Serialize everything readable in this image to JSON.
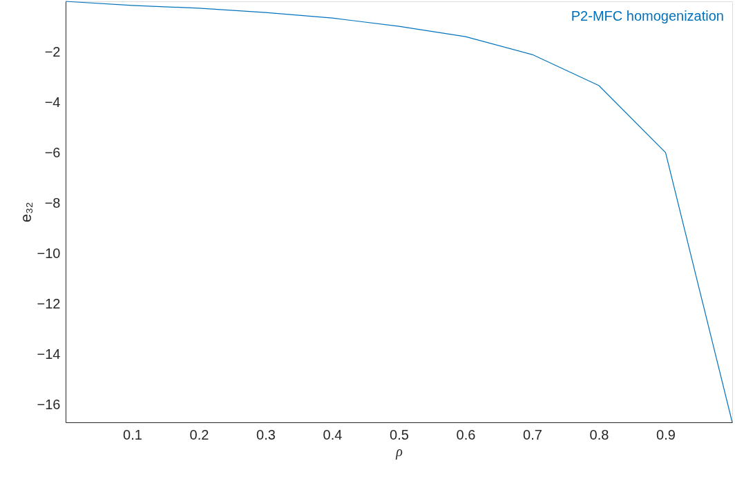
{
  "chart_data": {
    "type": "line",
    "xlabel": "ρ",
    "ylabel": "e₃₂",
    "x": [
      0,
      0.1,
      0.2,
      0.3,
      0.4,
      0.5,
      0.6,
      0.7,
      0.8,
      0.9,
      1.0
    ],
    "series": [
      {
        "name": "P2-MFC homogenization",
        "color": "#0072bd",
        "values": [
          0,
          -0.16,
          -0.27,
          -0.44,
          -0.66,
          -0.99,
          -1.4,
          -2.11,
          -3.34,
          -6.0,
          -16.7
        ]
      }
    ],
    "xlim": [
      0,
      1
    ],
    "ylim": [
      -16.7,
      0
    ],
    "xticks": [
      0.1,
      0.2,
      0.3,
      0.4,
      0.5,
      0.6,
      0.7,
      0.8,
      0.9
    ],
    "yticks": [
      -2,
      -4,
      -6,
      -8,
      -10,
      -12,
      -14,
      -16
    ],
    "grid": false,
    "legend": "top right",
    "line_style": "solid",
    "marker": "none"
  }
}
